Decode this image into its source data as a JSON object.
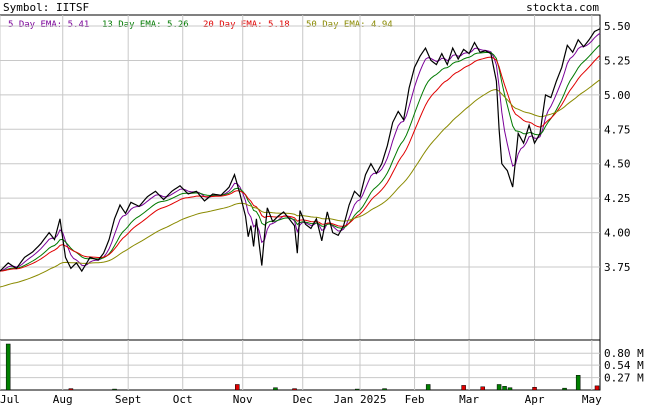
{
  "header": {
    "symbol": "Symbol: IITSF",
    "brand": "stockta.com"
  },
  "legend": [
    {
      "label": "5 Day EMA: 5.41",
      "color": "#7a0099"
    },
    {
      "label": "13 Day EMA: 5.26",
      "color": "#007a00"
    },
    {
      "label": "20 Day EMA: 5.18",
      "color": "#e00000"
    },
    {
      "label": "50 Day EMA: 4.94",
      "color": "#8a8a00"
    }
  ],
  "colors": {
    "price": "#000000",
    "grid": "#c8c8c8",
    "volume": "#008000",
    "volume_down": "#e00000",
    "frame": "#000000"
  },
  "chart_data": [
    {
      "type": "line",
      "x_tick_labels": [
        "Jul",
        "Aug",
        "Sept",
        "Oct",
        "Nov",
        "Dec",
        "Jan 2025",
        "Feb",
        "Mar",
        "Apr",
        "May"
      ],
      "y_tick_labels": [
        "3.75",
        "4.00",
        "4.25",
        "4.50",
        "4.75",
        "5.00",
        "5.25",
        "5.50"
      ],
      "ylim": [
        3.22,
        5.58
      ],
      "x_count": 220,
      "x_ticks": [
        0,
        23,
        47,
        67,
        89,
        111,
        132,
        152,
        172,
        196,
        217
      ],
      "price_anchors": [
        [
          0,
          3.72
        ],
        [
          3,
          3.78
        ],
        [
          6,
          3.74
        ],
        [
          9,
          3.82
        ],
        [
          12,
          3.86
        ],
        [
          15,
          3.92
        ],
        [
          18,
          4.0
        ],
        [
          20,
          3.95
        ],
        [
          22,
          4.1
        ],
        [
          24,
          3.82
        ],
        [
          26,
          3.74
        ],
        [
          28,
          3.78
        ],
        [
          30,
          3.72
        ],
        [
          33,
          3.82
        ],
        [
          36,
          3.8
        ],
        [
          38,
          3.85
        ],
        [
          40,
          3.95
        ],
        [
          42,
          4.1
        ],
        [
          44,
          4.2
        ],
        [
          46,
          4.14
        ],
        [
          48,
          4.22
        ],
        [
          51,
          4.19
        ],
        [
          54,
          4.26
        ],
        [
          57,
          4.3
        ],
        [
          60,
          4.24
        ],
        [
          63,
          4.3
        ],
        [
          66,
          4.34
        ],
        [
          69,
          4.28
        ],
        [
          72,
          4.3
        ],
        [
          75,
          4.23
        ],
        [
          78,
          4.28
        ],
        [
          81,
          4.27
        ],
        [
          84,
          4.33
        ],
        [
          86,
          4.42
        ],
        [
          88,
          4.28
        ],
        [
          90,
          4.12
        ],
        [
          91,
          3.97
        ],
        [
          92,
          4.05
        ],
        [
          93,
          3.9
        ],
        [
          94,
          4.1
        ],
        [
          95,
          3.92
        ],
        [
          96,
          3.76
        ],
        [
          97,
          3.98
        ],
        [
          98,
          4.18
        ],
        [
          100,
          4.08
        ],
        [
          102,
          4.12
        ],
        [
          104,
          4.15
        ],
        [
          106,
          4.1
        ],
        [
          108,
          4.05
        ],
        [
          109,
          3.85
        ],
        [
          110,
          4.16
        ],
        [
          112,
          4.06
        ],
        [
          114,
          4.03
        ],
        [
          116,
          4.1
        ],
        [
          118,
          3.94
        ],
        [
          120,
          4.15
        ],
        [
          122,
          4.0
        ],
        [
          124,
          3.98
        ],
        [
          126,
          4.05
        ],
        [
          128,
          4.2
        ],
        [
          130,
          4.3
        ],
        [
          132,
          4.26
        ],
        [
          134,
          4.42
        ],
        [
          136,
          4.5
        ],
        [
          138,
          4.43
        ],
        [
          140,
          4.5
        ],
        [
          142,
          4.63
        ],
        [
          144,
          4.8
        ],
        [
          146,
          4.88
        ],
        [
          148,
          4.82
        ],
        [
          150,
          5.05
        ],
        [
          152,
          5.2
        ],
        [
          154,
          5.28
        ],
        [
          156,
          5.34
        ],
        [
          158,
          5.25
        ],
        [
          160,
          5.22
        ],
        [
          162,
          5.3
        ],
        [
          164,
          5.22
        ],
        [
          166,
          5.34
        ],
        [
          168,
          5.26
        ],
        [
          170,
          5.33
        ],
        [
          172,
          5.3
        ],
        [
          174,
          5.38
        ],
        [
          176,
          5.31
        ],
        [
          178,
          5.32
        ],
        [
          180,
          5.3
        ],
        [
          182,
          5.1
        ],
        [
          183,
          4.75
        ],
        [
          184,
          4.5
        ],
        [
          186,
          4.45
        ],
        [
          188,
          4.33
        ],
        [
          190,
          4.72
        ],
        [
          192,
          4.65
        ],
        [
          194,
          4.78
        ],
        [
          196,
          4.65
        ],
        [
          198,
          4.72
        ],
        [
          200,
          5.0
        ],
        [
          202,
          4.98
        ],
        [
          204,
          5.1
        ],
        [
          206,
          5.2
        ],
        [
          208,
          5.36
        ],
        [
          210,
          5.31
        ],
        [
          212,
          5.4
        ],
        [
          214,
          5.35
        ],
        [
          216,
          5.4
        ],
        [
          218,
          5.46
        ],
        [
          220,
          5.48
        ]
      ],
      "ema_periods": [
        5,
        13,
        20,
        50
      ],
      "ema50_start": 3.6,
      "volume": {
        "y_tick_labels": [
          "0.80 M",
          "0.54 M",
          "0.27 M"
        ],
        "ylim": [
          0,
          1.0
        ],
        "bars": [
          {
            "x": 3,
            "v": 1.0,
            "up": true
          },
          {
            "x": 26,
            "v": 0.03,
            "up": false
          },
          {
            "x": 42,
            "v": 0.02,
            "up": true
          },
          {
            "x": 87,
            "v": 0.12,
            "up": false
          },
          {
            "x": 101,
            "v": 0.05,
            "up": true
          },
          {
            "x": 108,
            "v": 0.03,
            "up": false
          },
          {
            "x": 131,
            "v": 0.02,
            "up": true
          },
          {
            "x": 141,
            "v": 0.03,
            "up": true
          },
          {
            "x": 157,
            "v": 0.12,
            "up": true
          },
          {
            "x": 170,
            "v": 0.1,
            "up": false
          },
          {
            "x": 177,
            "v": 0.07,
            "up": false
          },
          {
            "x": 183,
            "v": 0.12,
            "up": true
          },
          {
            "x": 185,
            "v": 0.08,
            "up": true
          },
          {
            "x": 187,
            "v": 0.05,
            "up": true
          },
          {
            "x": 196,
            "v": 0.06,
            "up": false
          },
          {
            "x": 207,
            "v": 0.04,
            "up": true
          },
          {
            "x": 212,
            "v": 0.32,
            "up": true
          },
          {
            "x": 226,
            "v": 0.09,
            "up": false
          }
        ]
      }
    }
  ]
}
